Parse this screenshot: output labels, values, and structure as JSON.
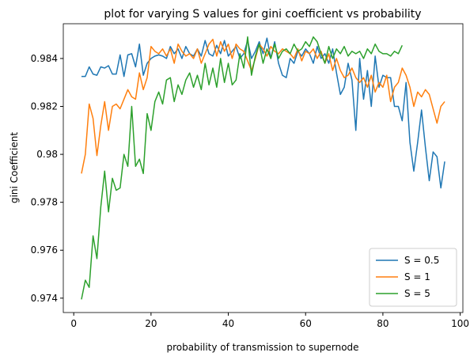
{
  "chart_data": {
    "type": "line",
    "title": "plot for varying S values for gini coefficient vs probability",
    "xlabel": "probability of transmission to supernode",
    "ylabel": "gini Coefficient",
    "xlim": [
      -2.7,
      100.7
    ],
    "xticks": [
      0,
      20,
      40,
      60,
      80,
      100
    ],
    "ylim": [
      0.9734,
      0.98545
    ],
    "yticks": [
      0.974,
      0.976,
      0.978,
      0.98,
      0.982,
      0.984
    ],
    "legend": "lower right",
    "series": [
      {
        "name": "S = 0.5",
        "color": "#1f77b4",
        "x": [
          2,
          3,
          4,
          5,
          6,
          7,
          8,
          9,
          10,
          11,
          12,
          13,
          14,
          15,
          16,
          17,
          18,
          19,
          20,
          21,
          22,
          23,
          24,
          25,
          26,
          27,
          28,
          29,
          30,
          31,
          32,
          33,
          34,
          35,
          36,
          37,
          38,
          39,
          40,
          41,
          42,
          43,
          44,
          45,
          46,
          47,
          48,
          49,
          50,
          51,
          52,
          53,
          54,
          55,
          56,
          57,
          58,
          59,
          60,
          61,
          62,
          63,
          64,
          65,
          66,
          67,
          68,
          69,
          70,
          71,
          72,
          73,
          74,
          75,
          76,
          77,
          78,
          79,
          80,
          81,
          82,
          83,
          84,
          85,
          86,
          87,
          88,
          89,
          90,
          91,
          92,
          93,
          94,
          95,
          96
        ],
        "values": [
          0.98325,
          0.98325,
          0.98365,
          0.98335,
          0.9833,
          0.98365,
          0.9836,
          0.9837,
          0.98335,
          0.98335,
          0.98415,
          0.98325,
          0.98415,
          0.9842,
          0.98365,
          0.9846,
          0.9833,
          0.9838,
          0.984,
          0.9841,
          0.98415,
          0.9841,
          0.984,
          0.9845,
          0.9842,
          0.9844,
          0.984,
          0.9845,
          0.9842,
          0.9841,
          0.9844,
          0.9841,
          0.98475,
          0.9842,
          0.9841,
          0.98455,
          0.9842,
          0.98475,
          0.9841,
          0.9843,
          0.9845,
          0.984,
          0.9842,
          0.98475,
          0.984,
          0.9843,
          0.9847,
          0.9842,
          0.98485,
          0.984,
          0.9847,
          0.9838,
          0.9833,
          0.9832,
          0.984,
          0.9838,
          0.9843,
          0.9841,
          0.9844,
          0.9842,
          0.9838,
          0.9845,
          0.984,
          0.9842,
          0.9838,
          0.9844,
          0.9834,
          0.9825,
          0.9828,
          0.9838,
          0.9831,
          0.981,
          0.984,
          0.9823,
          0.9835,
          0.982,
          0.9841,
          0.9828,
          0.9833,
          0.9832,
          0.9832,
          0.982,
          0.982,
          0.9814,
          0.983,
          0.9805,
          0.9793,
          0.9805,
          0.98185,
          0.9803,
          0.9789,
          0.9801,
          0.9799,
          0.9786,
          0.9797
        ]
      },
      {
        "name": "S = 1",
        "color": "#ff7f0e",
        "x": [
          2,
          3,
          4,
          5,
          6,
          7,
          8,
          9,
          10,
          11,
          12,
          13,
          14,
          15,
          16,
          17,
          18,
          19,
          20,
          21,
          22,
          23,
          24,
          25,
          26,
          27,
          28,
          29,
          30,
          31,
          32,
          33,
          34,
          35,
          36,
          37,
          38,
          39,
          40,
          41,
          42,
          43,
          44,
          45,
          46,
          47,
          48,
          49,
          50,
          51,
          52,
          53,
          54,
          55,
          56,
          57,
          58,
          59,
          60,
          61,
          62,
          63,
          64,
          65,
          66,
          67,
          68,
          69,
          70,
          71,
          72,
          73,
          74,
          75,
          76,
          77,
          78,
          79,
          80,
          81,
          82,
          83,
          84,
          85,
          86,
          87,
          88,
          89,
          90,
          91,
          92,
          93,
          94,
          95,
          96
        ],
        "values": [
          0.9792,
          0.98,
          0.9821,
          0.9815,
          0.97995,
          0.9812,
          0.9822,
          0.981,
          0.982,
          0.9821,
          0.9819,
          0.9823,
          0.9827,
          0.9824,
          0.9823,
          0.9834,
          0.9827,
          0.9832,
          0.9845,
          0.9843,
          0.9842,
          0.9844,
          0.9841,
          0.9844,
          0.9838,
          0.9846,
          0.9843,
          0.9841,
          0.9842,
          0.984,
          0.9844,
          0.9838,
          0.9842,
          0.9846,
          0.9848,
          0.9841,
          0.9847,
          0.9843,
          0.9846,
          0.984,
          0.9846,
          0.9844,
          0.9843,
          0.9839,
          0.9835,
          0.984,
          0.9846,
          0.9844,
          0.9841,
          0.9845,
          0.9843,
          0.9842,
          0.9844,
          0.9843,
          0.9842,
          0.984,
          0.9844,
          0.9839,
          0.9843,
          0.9842,
          0.9844,
          0.984,
          0.9843,
          0.9838,
          0.9842,
          0.9835,
          0.984,
          0.9835,
          0.9832,
          0.9833,
          0.9836,
          0.9832,
          0.983,
          0.9832,
          0.9828,
          0.9833,
          0.9826,
          0.983,
          0.9828,
          0.9833,
          0.9822,
          0.9828,
          0.983,
          0.9836,
          0.9833,
          0.9828,
          0.982,
          0.9826,
          0.9824,
          0.9827,
          0.9825,
          0.9819,
          0.9813,
          0.982,
          0.9822
        ]
      },
      {
        "name": "S = 5",
        "color": "#2ca02c",
        "x": [
          2,
          3,
          4,
          5,
          6,
          7,
          8,
          9,
          10,
          11,
          12,
          13,
          14,
          15,
          16,
          17,
          18,
          19,
          20,
          21,
          22,
          23,
          24,
          25,
          26,
          27,
          28,
          29,
          30,
          31,
          32,
          33,
          34,
          35,
          36,
          37,
          38,
          39,
          40,
          41,
          42,
          43,
          44,
          45,
          46,
          47,
          48,
          49,
          50,
          51,
          52,
          53,
          54,
          55,
          56,
          57,
          58,
          59,
          60,
          61,
          62,
          63,
          64,
          65,
          66,
          67,
          68,
          69,
          70,
          71,
          72,
          73,
          74,
          75,
          76,
          77,
          78,
          79,
          80,
          81,
          82,
          83,
          84,
          85
        ],
        "values": [
          0.97395,
          0.97475,
          0.97445,
          0.9766,
          0.97565,
          0.9778,
          0.9793,
          0.9776,
          0.979,
          0.9785,
          0.9786,
          0.98,
          0.9795,
          0.982,
          0.9795,
          0.9798,
          0.9792,
          0.9817,
          0.981,
          0.9822,
          0.9826,
          0.9821,
          0.9831,
          0.9832,
          0.9822,
          0.9829,
          0.9825,
          0.9831,
          0.9834,
          0.9828,
          0.9833,
          0.9827,
          0.9838,
          0.9829,
          0.9836,
          0.9828,
          0.984,
          0.983,
          0.9838,
          0.9829,
          0.9831,
          0.9842,
          0.9836,
          0.9849,
          0.9833,
          0.9841,
          0.9846,
          0.9838,
          0.9844,
          0.984,
          0.9846,
          0.984,
          0.9843,
          0.9844,
          0.9842,
          0.9846,
          0.9843,
          0.9844,
          0.9847,
          0.9845,
          0.9849,
          0.9847,
          0.9842,
          0.9838,
          0.9845,
          0.984,
          0.9844,
          0.9842,
          0.9845,
          0.9841,
          0.9843,
          0.9842,
          0.9843,
          0.984,
          0.9844,
          0.9842,
          0.9846,
          0.9843,
          0.9842,
          0.9842,
          0.9841,
          0.9843,
          0.9842,
          0.98455
        ]
      }
    ]
  }
}
